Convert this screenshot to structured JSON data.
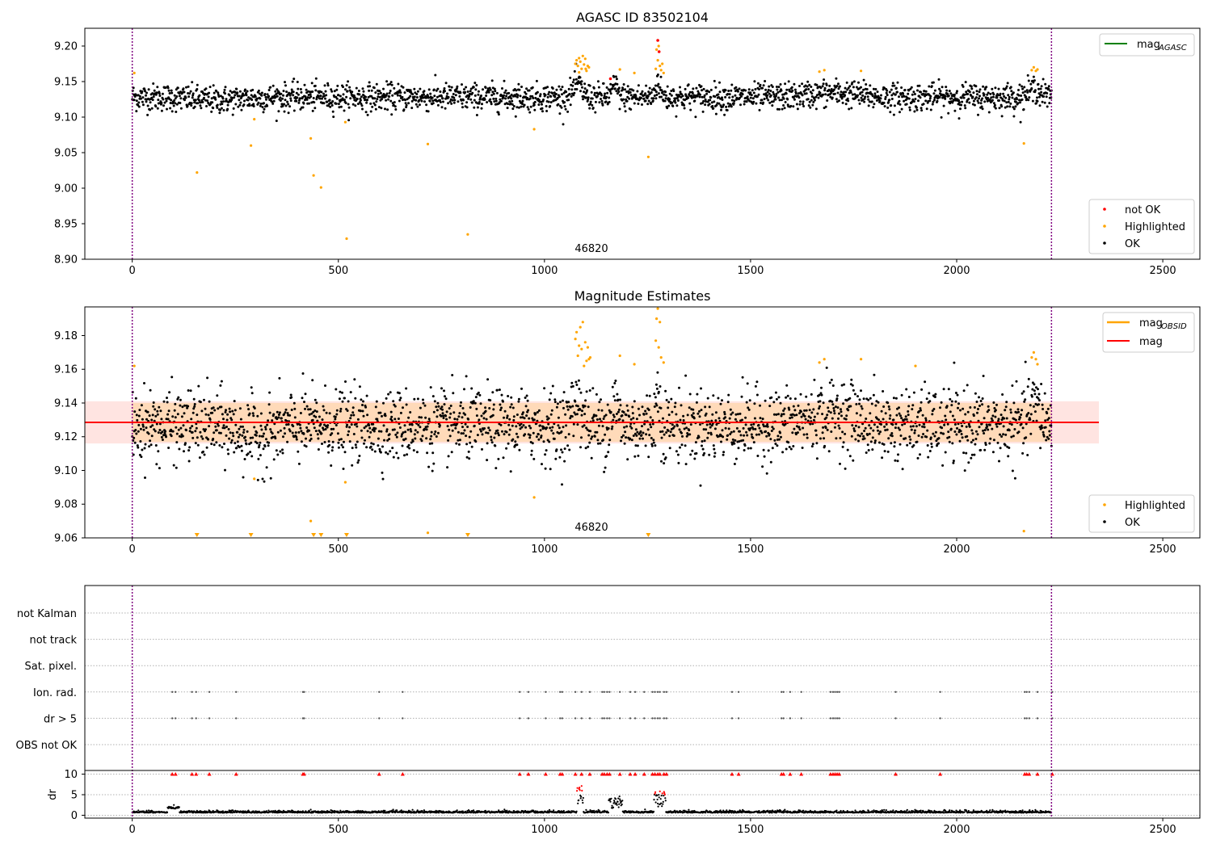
{
  "colors": {
    "ok": "#000000",
    "highlighted": "#ffa500",
    "not_ok": "#ff0000",
    "mag_agasc": "#008000",
    "mag_obsid": "#ffa500",
    "mag": "#ff0000",
    "obs_boundary": "#800080",
    "band_inner": "#ffdab9",
    "band_outer": "#ffe4e1"
  },
  "chart_data": [
    {
      "type": "scatter",
      "title": "AGASC ID 83502104",
      "xlim": [
        -115,
        2590
      ],
      "ylim": [
        8.9,
        9.225
      ],
      "xticks": [
        0,
        500,
        1000,
        1500,
        2000,
        2500
      ],
      "yticks": [
        8.9,
        8.95,
        9.0,
        9.05,
        9.1,
        9.15,
        9.2
      ],
      "ytick_labels": [
        "8.90",
        "8.95",
        "9.00",
        "9.05",
        "9.10",
        "9.15",
        "9.20"
      ],
      "obs_boundaries": [
        0,
        2230
      ],
      "obsid_label": "46820",
      "obsid_x": 1115,
      "grid": false,
      "line_legend": {
        "position": "top-right",
        "entries": [
          {
            "name": "mag",
            "sub": "AGASC",
            "color_key": "mag_agasc"
          }
        ]
      },
      "point_legend": {
        "position": "bottom-right",
        "entries": [
          {
            "name": "not OK",
            "color_key": "not_ok"
          },
          {
            "name": "Highlighted",
            "color_key": "highlighted"
          },
          {
            "name": "OK",
            "color_key": "ok"
          }
        ]
      },
      "ok_series": {
        "x_range": [
          0,
          2230
        ],
        "count": 2230,
        "baseline": 9.128,
        "spread": 0.0095,
        "bumps": [
          [
            1080,
            0.018,
            15
          ],
          [
            1170,
            0.015,
            10
          ],
          [
            1275,
            0.02,
            8
          ],
          [
            2190,
            0.012,
            20
          ],
          [
            1700,
            0.006,
            80
          ],
          [
            200,
            -0.004,
            80
          ]
        ]
      },
      "highlighted": [
        [
          5,
          9.162
        ],
        [
          157,
          9.022
        ],
        [
          288,
          9.06
        ],
        [
          296,
          9.097
        ],
        [
          433,
          9.07
        ],
        [
          440,
          9.018
        ],
        [
          458,
          9.001
        ],
        [
          517,
          9.093
        ],
        [
          520,
          8.929
        ],
        [
          717,
          9.062
        ],
        [
          814,
          8.935
        ],
        [
          975,
          9.083
        ],
        [
          1075,
          9.175
        ],
        [
          1078,
          9.18
        ],
        [
          1081,
          9.172
        ],
        [
          1084,
          9.183
        ],
        [
          1087,
          9.178
        ],
        [
          1090,
          9.168
        ],
        [
          1093,
          9.186
        ],
        [
          1096,
          9.174
        ],
        [
          1099,
          9.182
        ],
        [
          1102,
          9.165
        ],
        [
          1105,
          9.172
        ],
        [
          1108,
          9.17
        ],
        [
          1084,
          9.163
        ],
        [
          1100,
          9.168
        ],
        [
          1183,
          9.167
        ],
        [
          1218,
          9.162
        ],
        [
          1252,
          9.044
        ],
        [
          1270,
          9.168
        ],
        [
          1272,
          9.195
        ],
        [
          1275,
          9.18
        ],
        [
          1277,
          9.2
        ],
        [
          1280,
          9.172
        ],
        [
          1283,
          9.166
        ],
        [
          1286,
          9.175
        ],
        [
          1289,
          9.162
        ],
        [
          1667,
          9.164
        ],
        [
          1679,
          9.166
        ],
        [
          1768,
          9.165
        ],
        [
          2163,
          9.063
        ],
        [
          2182,
          9.166
        ],
        [
          2187,
          9.17
        ],
        [
          2192,
          9.165
        ],
        [
          2196,
          9.167
        ]
      ],
      "not_ok": [
        [
          1160,
          9.154
        ],
        [
          1275,
          9.208
        ],
        [
          1278,
          9.192
        ]
      ]
    },
    {
      "type": "scatter",
      "title": "Magnitude Estimates",
      "xlim": [
        -115,
        2590
      ],
      "ylim": [
        9.06,
        9.197
      ],
      "xticks": [
        0,
        500,
        1000,
        1500,
        2000,
        2500
      ],
      "yticks": [
        9.06,
        9.08,
        9.1,
        9.12,
        9.14,
        9.16,
        9.18
      ],
      "ytick_labels": [
        "9.06",
        "9.08",
        "9.10",
        "9.12",
        "9.14",
        "9.16",
        "9.18"
      ],
      "obs_boundaries": [
        0,
        2230
      ],
      "obsid_label": "46820",
      "obsid_x": 1115,
      "mag_line": {
        "value": 9.1285,
        "x_range": [
          -115,
          2345
        ]
      },
      "band_outer": {
        "low": 9.116,
        "high": 9.141,
        "x_range": [
          -115,
          2345
        ]
      },
      "band_inner": {
        "low": 9.117,
        "high": 9.14,
        "x_range": [
          0,
          2230
        ]
      },
      "grid": false,
      "line_legend": {
        "position": "top-right",
        "entries": [
          {
            "name": "mag",
            "sub": "OBSID",
            "color_key": "mag_obsid"
          },
          {
            "name": "mag",
            "sub": "",
            "color_key": "mag"
          }
        ]
      },
      "point_legend": {
        "position": "bottom-right",
        "entries": [
          {
            "name": "Highlighted",
            "color_key": "highlighted"
          },
          {
            "name": "OK",
            "color_key": "ok"
          }
        ]
      },
      "ok_series": {
        "x_range": [
          0,
          2230
        ],
        "count": 2230,
        "baseline": 9.1265,
        "spread": 0.0105,
        "bumps": [
          [
            1080,
            0.016,
            15
          ],
          [
            1170,
            0.014,
            10
          ],
          [
            1275,
            0.018,
            8
          ],
          [
            2190,
            0.012,
            20
          ],
          [
            1700,
            0.007,
            80
          ],
          [
            300,
            -0.006,
            60
          ]
        ]
      },
      "highlighted": [
        [
          5,
          9.162
        ],
        [
          296,
          9.095
        ],
        [
          433,
          9.07
        ],
        [
          517,
          9.093
        ],
        [
          717,
          9.063
        ],
        [
          975,
          9.084
        ],
        [
          1075,
          9.178
        ],
        [
          1078,
          9.182
        ],
        [
          1081,
          9.168
        ],
        [
          1084,
          9.174
        ],
        [
          1087,
          9.185
        ],
        [
          1090,
          9.172
        ],
        [
          1093,
          9.188
        ],
        [
          1096,
          9.162
        ],
        [
          1099,
          9.176
        ],
        [
          1102,
          9.165
        ],
        [
          1105,
          9.173
        ],
        [
          1108,
          9.166
        ],
        [
          1111,
          9.167
        ],
        [
          1183,
          9.168
        ],
        [
          1218,
          9.163
        ],
        [
          1270,
          9.177
        ],
        [
          1272,
          9.19
        ],
        [
          1275,
          9.196
        ],
        [
          1277,
          9.173
        ],
        [
          1280,
          9.188
        ],
        [
          1283,
          9.167
        ],
        [
          1289,
          9.164
        ],
        [
          1667,
          9.164
        ],
        [
          1679,
          9.166
        ],
        [
          1768,
          9.166
        ],
        [
          1900,
          9.162
        ],
        [
          2163,
          9.064
        ],
        [
          2182,
          9.167
        ],
        [
          2187,
          9.17
        ],
        [
          2192,
          9.166
        ],
        [
          2196,
          9.163
        ]
      ],
      "highlighted_below": [
        157,
        288,
        440,
        458,
        520,
        814,
        1252
      ]
    },
    {
      "type": "scatter",
      "title": "",
      "xlim": [
        -115,
        2590
      ],
      "obs_boundaries": [
        0,
        2230
      ],
      "flag_rows": [
        "not Kalman",
        "not track",
        "Sat. pixel.",
        "Ion. rad.",
        "dr > 5",
        "OBS not OK"
      ],
      "flag_x": [
        97,
        105,
        145,
        155,
        187,
        252,
        414,
        417,
        599,
        656,
        940,
        961,
        1003,
        1038,
        1043,
        1075,
        1090,
        1110,
        1140,
        1145,
        1152,
        1158,
        1183,
        1208,
        1220,
        1242,
        1262,
        1268,
        1275,
        1280,
        1290,
        1296,
        1455,
        1471,
        1575,
        1580,
        1596,
        1623,
        1694,
        1700,
        1705,
        1710,
        1715,
        1852,
        1960,
        2165,
        2170,
        2176,
        2196,
        2232
      ],
      "flag_rows_with_points": [
        "Ion. rad.",
        "dr > 5"
      ],
      "dr_axis": {
        "ylabel": "dr",
        "yticks": [
          0,
          5,
          10
        ],
        "ytick_labels": [
          "0",
          "5",
          "10"
        ],
        "ylim": [
          -0.5,
          10.5
        ],
        "clip_value": 10
      }
    }
  ]
}
